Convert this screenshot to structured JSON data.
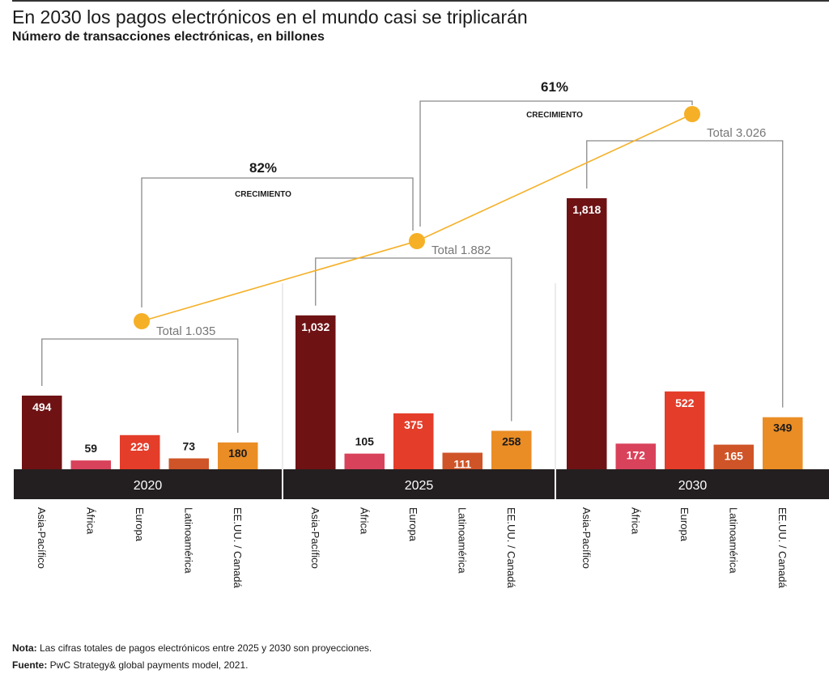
{
  "header": {
    "title": "En 2030 los pagos electrónicos en el mundo casi se triplicarán",
    "subtitle": "Número de transacciones electrónicas, en billones"
  },
  "chart_data": {
    "type": "bar",
    "title": "En 2030 los pagos electrónicos en el mundo casi se triplicarán",
    "subtitle": "Número de transacciones electrónicas, en billones",
    "xlabel": "",
    "ylabel": "",
    "grid": false,
    "categories": [
      "Asia-Pacífico",
      "África",
      "Europa",
      "Latinoamérica",
      "EE.UU. / Canadá"
    ],
    "category_colors": [
      "#6e1214",
      "#d9425b",
      "#e43d2a",
      "#cf5427",
      "#ea8d25"
    ],
    "groups": [
      {
        "year": "2020",
        "values": [
          494,
          59,
          229,
          73,
          180
        ],
        "labels": [
          "494",
          "59",
          "229",
          "73",
          "180"
        ],
        "total_label": "Total 1.035",
        "total": 1035
      },
      {
        "year": "2025",
        "values": [
          1032,
          105,
          375,
          111,
          258
        ],
        "labels": [
          "1,032",
          "105",
          "375",
          "111",
          "258"
        ],
        "total_label": "Total 1.882",
        "total": 1882
      },
      {
        "year": "2030",
        "values": [
          1818,
          172,
          522,
          165,
          349
        ],
        "labels": [
          "1,818",
          "172",
          "522",
          "165",
          "349"
        ],
        "total_label": "Total 3.026",
        "total": 3026
      }
    ],
    "growth": [
      {
        "from": "2020",
        "to": "2025",
        "percent": "82%",
        "label": "CRECIMIENTO"
      },
      {
        "from": "2025",
        "to": "2030",
        "percent": "61%",
        "label": "CRECIMIENTO"
      }
    ],
    "total_line_color": "#f5b027",
    "band_color": "#231f20"
  },
  "footer": {
    "note_label": "Nota:",
    "note_text": " Las cifras totales de pagos electrónicos entre 2025 y 2030 son proyecciones.",
    "source_label": "Fuente:",
    "source_text": " PwC Strategy& global payments model, 2021."
  }
}
